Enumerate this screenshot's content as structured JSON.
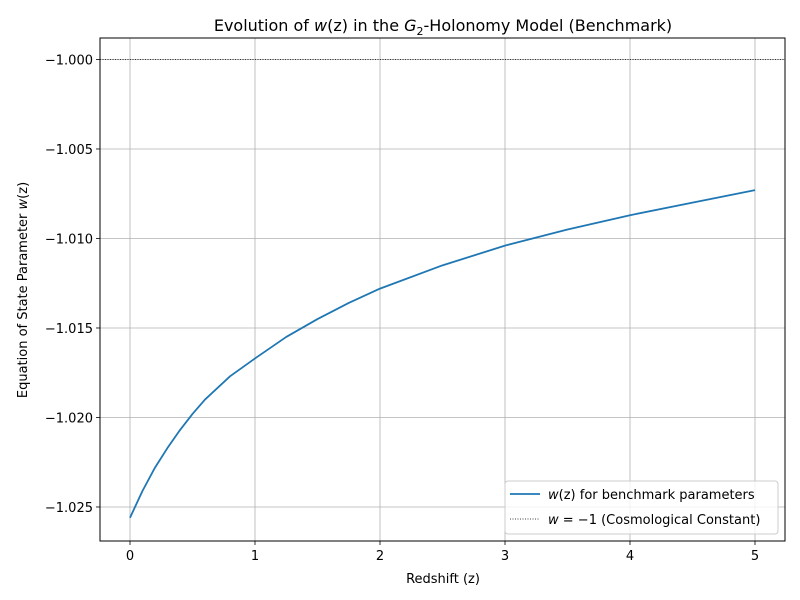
{
  "chart_data": {
    "type": "line",
    "title": {
      "pre": "Evolution of ",
      "w": "w",
      "paren": "(z)",
      "mid": " in the ",
      "G": "G",
      "sub": "2",
      "post": "-Holonomy Model (Benchmark)"
    },
    "xlabel": "Redshift (z)",
    "ylabel": {
      "pre": "Equation of State Parameter ",
      "w": "w",
      "paren": "(z)"
    },
    "xlim": [
      -0.24,
      5.24
    ],
    "ylim": [
      -1.0269,
      -0.9988
    ],
    "xticks": [
      0,
      1,
      2,
      3,
      4,
      5
    ],
    "xtick_labels": [
      "0",
      "1",
      "2",
      "3",
      "4",
      "5"
    ],
    "yticks": [
      -1.025,
      -1.02,
      -1.015,
      -1.01,
      -1.005,
      -1.0
    ],
    "ytick_labels": [
      "−1.025",
      "−1.020",
      "−1.015",
      "−1.010",
      "−1.005",
      "−1.000"
    ],
    "grid": true,
    "legend_position": "lower-right",
    "series": [
      {
        "kind": "curve",
        "color": "#1f77b4",
        "legend": {
          "w": "w",
          "paren": "(z)",
          "rest": " for benchmark parameters"
        },
        "x": [
          0,
          0.1,
          0.2,
          0.3,
          0.4,
          0.5,
          0.6,
          0.8,
          1.0,
          1.25,
          1.5,
          1.75,
          2.0,
          2.5,
          3.0,
          3.5,
          4.0,
          4.5,
          5.0
        ],
        "y": [
          -1.0256,
          -1.0241,
          -1.0228,
          -1.0217,
          -1.0207,
          -1.0198,
          -1.019,
          -1.0177,
          -1.0167,
          -1.0155,
          -1.0145,
          -1.0136,
          -1.0128,
          -1.0115,
          -1.0104,
          -1.0095,
          -1.0087,
          -1.008,
          -1.0073
        ]
      },
      {
        "kind": "hline",
        "color": "#000000",
        "y": -1.0,
        "legend": {
          "w": "w",
          "eq": " = −1",
          "rest": " (Cosmological Constant)"
        }
      }
    ]
  }
}
